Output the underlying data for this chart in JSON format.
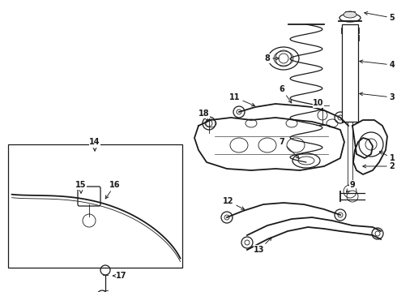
{
  "background_color": "#ffffff",
  "line_color": "#1a1a1a",
  "figure_width": 4.9,
  "figure_height": 3.6,
  "dpi": 100,
  "label_fontsize": 7.0,
  "label_bold": true,
  "arrow_lw": 0.6,
  "comp_lw": 0.9
}
